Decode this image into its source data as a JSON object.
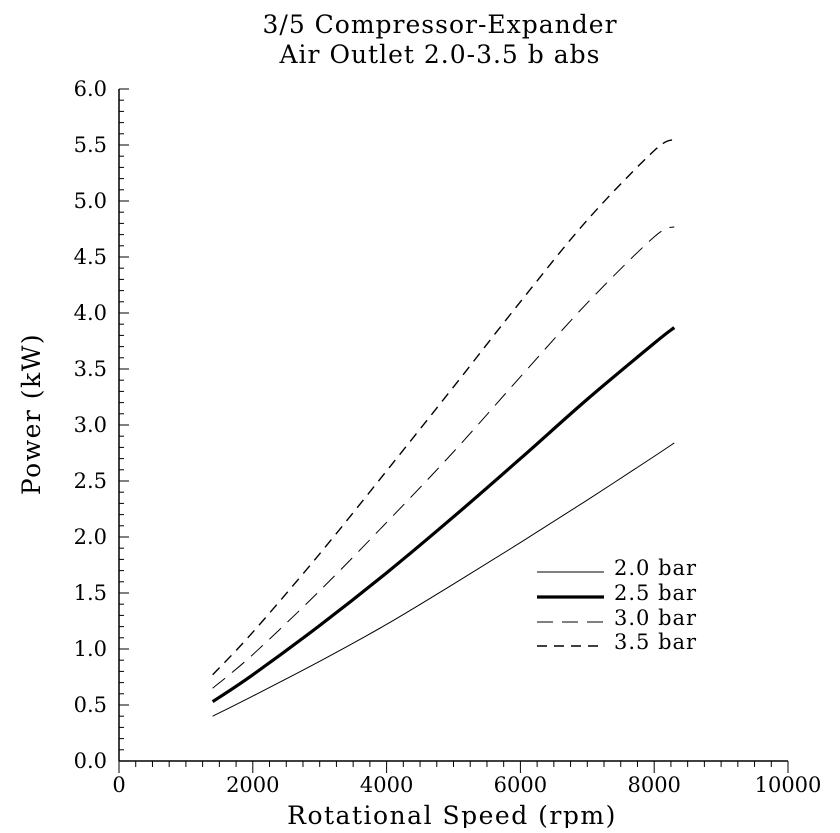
{
  "chart_data": {
    "type": "line",
    "title": "3/5 Compressor-Expander",
    "subtitle": "Air Outlet 2.0-3.5 b abs",
    "xlabel": "Rotational Speed (rpm)",
    "ylabel": "Power (kW)",
    "xlim": [
      0,
      10000
    ],
    "ylim": [
      0.0,
      6.0
    ],
    "x_ticks": [
      "0",
      "2000",
      "4000",
      "6000",
      "8000",
      "10000"
    ],
    "y_ticks": [
      "0.0",
      "0.5",
      "1.0",
      "1.5",
      "2.0",
      "2.5",
      "3.0",
      "3.5",
      "4.0",
      "4.5",
      "5.0",
      "5.5",
      "6.0"
    ],
    "grid": false,
    "legend_position": "lower-right",
    "x": [
      1400,
      2000,
      3000,
      4000,
      5000,
      6000,
      7000,
      8000,
      8300
    ],
    "series": [
      {
        "name": "2.0 bar",
        "style": "solid-thin",
        "values": [
          0.4,
          0.58,
          0.89,
          1.22,
          1.58,
          1.95,
          2.33,
          2.72,
          2.84
        ]
      },
      {
        "name": "2.5 bar",
        "style": "solid-thick",
        "values": [
          0.53,
          0.77,
          1.21,
          1.68,
          2.18,
          2.7,
          3.23,
          3.73,
          3.87
        ]
      },
      {
        "name": "3.0 bar",
        "style": "dashed-long",
        "values": [
          0.65,
          0.95,
          1.52,
          2.13,
          2.76,
          3.43,
          4.09,
          4.68,
          4.77
        ]
      },
      {
        "name": "3.5 bar",
        "style": "dashed-short",
        "values": [
          0.77,
          1.15,
          1.85,
          2.59,
          3.34,
          4.1,
          4.83,
          5.45,
          5.55
        ]
      }
    ]
  }
}
